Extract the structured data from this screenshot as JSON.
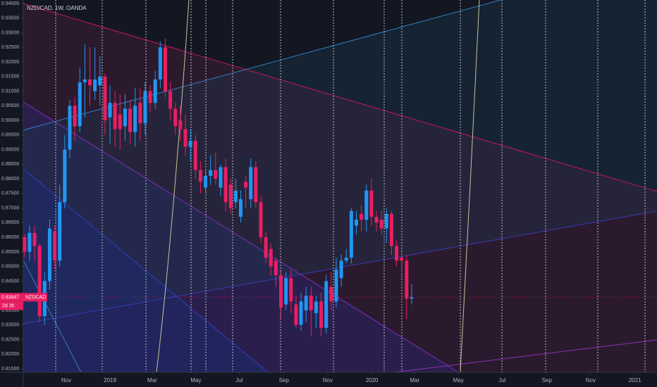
{
  "chart_data": {
    "type": "candlestick",
    "title": "NZD/CAD, 1W, OANDA",
    "symbol": "NZDCAD",
    "countdown": "2d 3h",
    "up_color": "#2196f3",
    "down_color": "#e91e63",
    "x": [
      -17,
      -16,
      -15,
      -14,
      -13,
      -12,
      -11,
      -10,
      -9,
      -8,
      -7,
      -6,
      -5,
      -4,
      -3,
      -2,
      -1,
      0,
      1,
      2,
      3,
      4,
      5,
      6,
      7,
      8,
      9,
      10,
      11,
      12,
      13,
      14,
      15,
      16,
      17,
      18,
      19,
      20,
      21,
      22,
      23,
      24,
      25,
      26,
      27,
      28,
      29,
      30,
      31,
      32,
      33,
      34,
      35,
      36,
      37,
      38,
      39,
      40,
      41,
      42,
      43,
      44,
      45,
      46,
      47,
      48,
      49,
      50,
      51,
      52,
      53,
      54,
      55,
      56,
      57,
      58,
      59,
      60
    ],
    "open": [
      0.86,
      0.855,
      0.8615,
      0.857,
      0.833,
      0.845,
      0.862,
      0.852,
      0.872,
      0.89,
      0.905,
      0.898,
      0.913,
      0.914,
      0.91,
      0.912,
      0.915,
      0.901,
      0.906,
      0.902,
      0.898,
      0.904,
      0.896,
      0.906,
      0.899,
      0.91,
      0.906,
      0.914,
      0.925,
      0.91,
      0.904,
      0.9,
      0.897,
      0.891,
      0.893,
      0.883,
      0.877,
      0.881,
      0.883,
      0.877,
      0.884,
      0.878,
      0.872,
      0.867,
      0.879,
      0.873,
      0.884,
      0.872,
      0.86,
      0.856,
      0.852,
      0.847,
      0.837,
      0.846,
      0.837,
      0.83,
      0.835,
      0.84,
      0.834,
      0.838,
      0.829,
      0.843,
      0.838,
      0.846,
      0.852,
      0.853,
      0.864,
      0.868,
      0.866,
      0.876,
      0.867,
      0.866,
      0.863,
      0.868,
      0.857,
      0.853,
      0.852,
      0.839
    ],
    "high": [
      0.861,
      0.864,
      0.864,
      0.858,
      0.848,
      0.866,
      0.864,
      0.878,
      0.895,
      0.907,
      0.908,
      0.918,
      0.926,
      0.925,
      0.925,
      0.922,
      0.916,
      0.912,
      0.91,
      0.909,
      0.909,
      0.907,
      0.911,
      0.911,
      0.913,
      0.912,
      0.917,
      0.927,
      0.928,
      0.913,
      0.906,
      0.905,
      0.902,
      0.897,
      0.895,
      0.886,
      0.883,
      0.888,
      0.889,
      0.885,
      0.887,
      0.88,
      0.88,
      0.876,
      0.881,
      0.887,
      0.886,
      0.874,
      0.862,
      0.858,
      0.853,
      0.849,
      0.848,
      0.849,
      0.84,
      0.841,
      0.843,
      0.843,
      0.84,
      0.841,
      0.847,
      0.848,
      0.853,
      0.854,
      0.856,
      0.87,
      0.869,
      0.871,
      0.878,
      0.88,
      0.869,
      0.869,
      0.87,
      0.869,
      0.859,
      0.855,
      0.854,
      0.844
    ],
    "low": [
      0.853,
      0.852,
      0.852,
      0.831,
      0.83,
      0.842,
      0.849,
      0.85,
      0.87,
      0.887,
      0.893,
      0.896,
      0.901,
      0.905,
      0.907,
      0.905,
      0.895,
      0.892,
      0.891,
      0.89,
      0.893,
      0.892,
      0.891,
      0.893,
      0.895,
      0.903,
      0.904,
      0.911,
      0.908,
      0.9,
      0.895,
      0.893,
      0.888,
      0.886,
      0.88,
      0.875,
      0.875,
      0.878,
      0.878,
      0.874,
      0.869,
      0.868,
      0.87,
      0.865,
      0.87,
      0.87,
      0.87,
      0.858,
      0.851,
      0.847,
      0.843,
      0.832,
      0.835,
      0.834,
      0.829,
      0.828,
      0.831,
      0.826,
      0.829,
      0.826,
      0.827,
      0.835,
      0.836,
      0.843,
      0.851,
      0.851,
      0.861,
      0.862,
      0.862,
      0.864,
      0.862,
      0.861,
      0.858,
      0.854,
      0.85,
      0.846,
      0.832,
      0.837
    ],
    "close": [
      0.855,
      0.8615,
      0.857,
      0.833,
      0.845,
      0.863,
      0.852,
      0.872,
      0.89,
      0.905,
      0.898,
      0.913,
      0.914,
      0.912,
      0.914,
      0.915,
      0.9,
      0.906,
      0.897,
      0.897,
      0.904,
      0.896,
      0.905,
      0.899,
      0.91,
      0.906,
      0.914,
      0.925,
      0.91,
      0.904,
      0.898,
      0.897,
      0.891,
      0.893,
      0.883,
      0.879,
      0.881,
      0.883,
      0.88,
      0.884,
      0.872,
      0.87,
      0.876,
      0.873,
      0.877,
      0.884,
      0.872,
      0.86,
      0.853,
      0.85,
      0.847,
      0.836,
      0.846,
      0.838,
      0.83,
      0.838,
      0.84,
      0.835,
      0.838,
      0.829,
      0.845,
      0.838,
      0.849,
      0.852,
      0.853,
      0.869,
      0.866,
      0.866,
      0.876,
      0.867,
      0.865,
      0.863,
      0.868,
      0.857,
      0.852,
      0.852,
      0.839,
      0.83947
    ],
    "xlim": [
      -17.25,
      108.8
    ],
    "xticks": [
      {
        "value": -8.7,
        "label": "Nov"
      },
      {
        "value": 0,
        "label": "2019"
      },
      {
        "value": 8.4,
        "label": "Mar"
      },
      {
        "value": 17.1,
        "label": "May"
      },
      {
        "value": 25.7,
        "label": "Jul"
      },
      {
        "value": 34.6,
        "label": "Sep"
      },
      {
        "value": 43.3,
        "label": "Nov"
      },
      {
        "value": 52.1,
        "label": "2020"
      },
      {
        "value": 60.6,
        "label": "Mar"
      },
      {
        "value": 69.3,
        "label": "May"
      },
      {
        "value": 78,
        "label": "Jul"
      },
      {
        "value": 86.9,
        "label": "Sep"
      },
      {
        "value": 95.6,
        "label": "Nov"
      },
      {
        "value": 104.4,
        "label": "2021"
      }
    ],
    "ylim": [
      0.8138,
      0.9412
    ],
    "yticks": [
      {
        "value": 0.815,
        "label": "0.81500"
      },
      {
        "value": 0.82,
        "label": "0.82000"
      },
      {
        "value": 0.825,
        "label": "0.82500"
      },
      {
        "value": 0.83,
        "label": "0.83000"
      },
      {
        "value": 0.835,
        "label": "0.83500"
      },
      {
        "value": 0.84,
        "label": "0.84000"
      },
      {
        "value": 0.845,
        "label": "0.84500"
      },
      {
        "value": 0.85,
        "label": "0.85000"
      },
      {
        "value": 0.855,
        "label": "0.85500"
      },
      {
        "value": 0.86,
        "label": "0.86000"
      },
      {
        "value": 0.865,
        "label": "0.86500"
      },
      {
        "value": 0.87,
        "label": "0.87000"
      },
      {
        "value": 0.875,
        "label": "0.87500"
      },
      {
        "value": 0.88,
        "label": "0.88000"
      },
      {
        "value": 0.885,
        "label": "0.88500"
      },
      {
        "value": 0.89,
        "label": "0.89000"
      },
      {
        "value": 0.895,
        "label": "0.89500"
      },
      {
        "value": 0.9,
        "label": "0.90000"
      },
      {
        "value": 0.905,
        "label": "0.90500"
      },
      {
        "value": 0.91,
        "label": "0.91000"
      },
      {
        "value": 0.915,
        "label": "0.91500"
      },
      {
        "value": 0.92,
        "label": "0.92000"
      },
      {
        "value": 0.925,
        "label": "0.92500"
      },
      {
        "value": 0.93,
        "label": "0.93000"
      },
      {
        "value": 0.935,
        "label": "0.93500"
      },
      {
        "value": 0.94,
        "label": "0.94000"
      }
    ]
  }
}
